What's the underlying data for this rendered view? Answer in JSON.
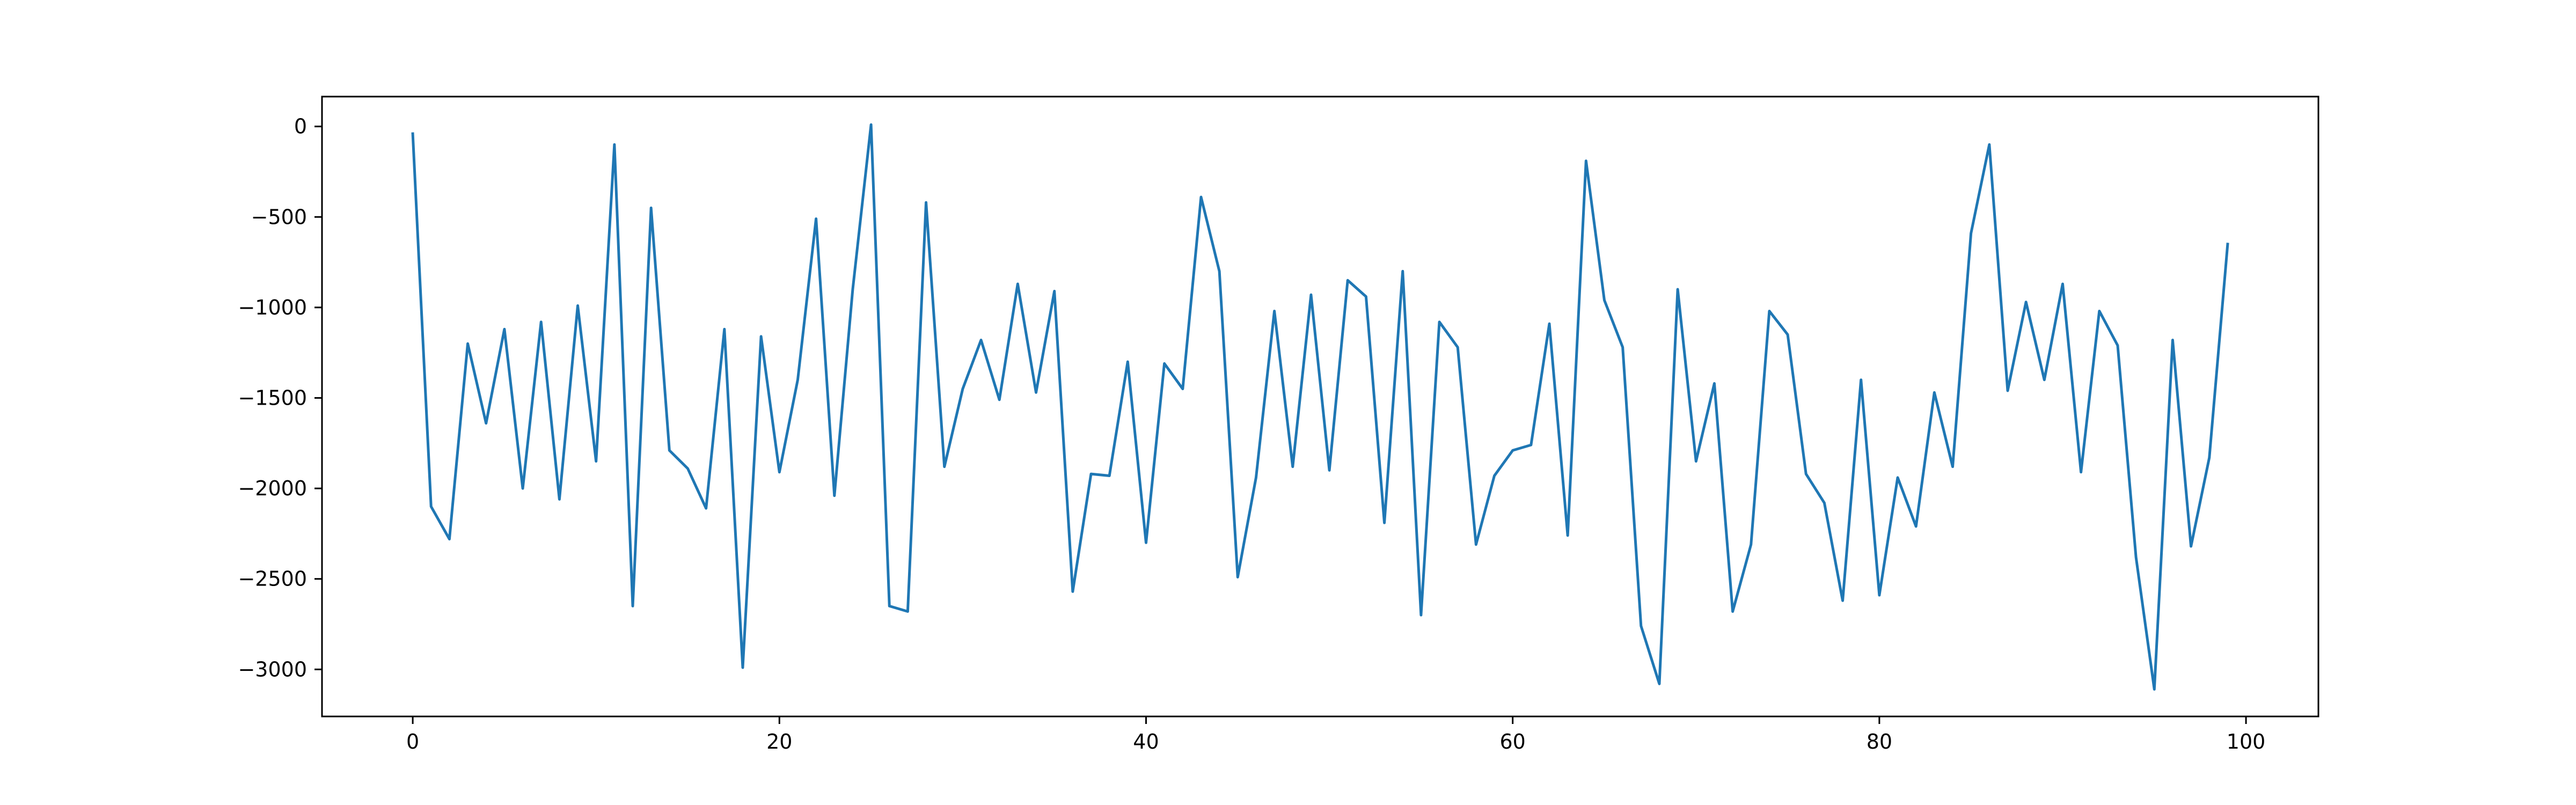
{
  "chart_data": {
    "type": "line",
    "title": "",
    "xlabel": "",
    "ylabel": "",
    "xlim": [
      -4.95,
      103.95
    ],
    "ylim": [
      -3260,
      165
    ],
    "xticks": [
      0,
      20,
      40,
      60,
      80,
      100
    ],
    "yticks": [
      0,
      -500,
      -1000,
      -1500,
      -2000,
      -2500,
      -3000
    ],
    "xtick_labels": [
      "0",
      "20",
      "40",
      "60",
      "80",
      "100"
    ],
    "ytick_labels": [
      "0",
      "−500",
      "−1000",
      "−1500",
      "−2000",
      "−2500",
      "−3000"
    ],
    "grid": false,
    "series": [
      {
        "color": "#1f77b4",
        "x": [
          0,
          1,
          2,
          3,
          4,
          5,
          6,
          7,
          8,
          9,
          10,
          11,
          12,
          13,
          14,
          15,
          16,
          17,
          18,
          19,
          20,
          21,
          22,
          23,
          24,
          25,
          26,
          27,
          28,
          29,
          30,
          31,
          32,
          33,
          34,
          35,
          36,
          37,
          38,
          39,
          40,
          41,
          42,
          43,
          44,
          45,
          46,
          47,
          48,
          49,
          50,
          51,
          52,
          53,
          54,
          55,
          56,
          57,
          58,
          59,
          60,
          61,
          62,
          63,
          64,
          65,
          66,
          67,
          68,
          69,
          70,
          71,
          72,
          73,
          74,
          75,
          76,
          77,
          78,
          79,
          80,
          81,
          82,
          83,
          84,
          85,
          86,
          87,
          88,
          89,
          90,
          91,
          92,
          93,
          94,
          95,
          96,
          97,
          98,
          99
        ],
        "y": [
          -40,
          -2100,
          -2280,
          -1200,
          -1640,
          -1120,
          -2000,
          -1080,
          -2060,
          -990,
          -1850,
          -100,
          -2650,
          -450,
          -1790,
          -1890,
          -2110,
          -1120,
          -2990,
          -1160,
          -1910,
          -1400,
          -510,
          -2040,
          -900,
          10,
          -2650,
          -2680,
          -420,
          -1880,
          -1450,
          -1180,
          -1510,
          -870,
          -1470,
          -910,
          -2570,
          -1920,
          -1930,
          -1300,
          -2300,
          -1310,
          -1450,
          -390,
          -800,
          -2490,
          -1940,
          -1020,
          -1880,
          -930,
          -1900,
          -850,
          -940,
          -2190,
          -800,
          -2700,
          -1080,
          -1220,
          -2310,
          -1930,
          -1790,
          -1760,
          -1090,
          -2260,
          -190,
          -960,
          -1220,
          -2760,
          -3080,
          -900,
          -1850,
          -1420,
          -2680,
          -2310,
          -1020,
          -1150,
          -1920,
          -2080,
          -2620,
          -1400,
          -2590,
          -1940,
          -2210,
          -1470,
          -1880,
          -590,
          -100,
          -1460,
          -970,
          -1400,
          -870,
          -1910,
          -1020,
          -1210,
          -2380,
          -3110,
          -1180,
          -2320,
          -1830,
          -650
        ]
      }
    ]
  }
}
